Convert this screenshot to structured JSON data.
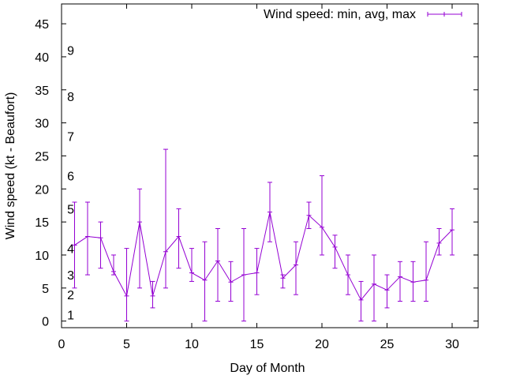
{
  "chart_data": {
    "type": "line",
    "xlabel": "Day of Month",
    "ylabel": "Wind speed (kt - Beaufort)",
    "xlim": [
      0,
      32
    ],
    "ylim": [
      -1,
      48
    ],
    "xticks": [
      0,
      5,
      10,
      15,
      20,
      25,
      30
    ],
    "yticks": [
      0,
      5,
      10,
      15,
      20,
      25,
      30,
      35,
      40,
      45
    ],
    "grid": false,
    "legend_position": "top-right",
    "colors": {
      "series": "#9400d3",
      "axis": "#000000"
    },
    "series": [
      {
        "name": "Wind speed: min, avg, max",
        "x": [
          1,
          2,
          3,
          4,
          5,
          6,
          7,
          8,
          9,
          10,
          11,
          12,
          13,
          14,
          15,
          16,
          17,
          18,
          19,
          20,
          21,
          22,
          23,
          24,
          25,
          26,
          27,
          28,
          29,
          30
        ],
        "avg": [
          11.5,
          12.8,
          12.6,
          7.5,
          3.8,
          15,
          3.8,
          10.5,
          12.8,
          7.3,
          6.2,
          9.1,
          5.9,
          7,
          7.3,
          16.5,
          6.5,
          8.5,
          16,
          14.2,
          11.2,
          7,
          3.2,
          5.6,
          4.7,
          6.7,
          5.9,
          6.2,
          11.8,
          13.8
        ],
        "min": [
          5,
          7,
          8,
          7,
          0,
          5,
          2,
          5,
          8,
          6,
          0,
          3,
          3,
          0,
          4,
          12,
          5,
          4,
          14,
          10,
          8,
          4,
          0,
          0,
          2,
          3,
          3,
          3,
          10,
          10
        ],
        "max": [
          18,
          18,
          15,
          10,
          11,
          20,
          6,
          26,
          17,
          11,
          12,
          14,
          9,
          14,
          11,
          21,
          7,
          12,
          18,
          22,
          13,
          10,
          6,
          10,
          7,
          9,
          9,
          12,
          14,
          17
        ]
      }
    ],
    "annotations": {
      "beaufort_scale": [
        {
          "label": "1",
          "y": 1
        },
        {
          "label": "2",
          "y": 4
        },
        {
          "label": "3",
          "y": 7
        },
        {
          "label": "4",
          "y": 11
        },
        {
          "label": "5",
          "y": 17
        },
        {
          "label": "6",
          "y": 22
        },
        {
          "label": "7",
          "y": 28
        },
        {
          "label": "8",
          "y": 34
        },
        {
          "label": "9",
          "y": 41
        }
      ],
      "beaufort_x": 0.7
    }
  }
}
